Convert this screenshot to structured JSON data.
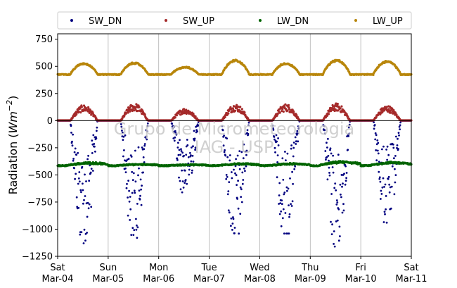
{
  "chart_data": {
    "type": "scatter",
    "ylabel_main": "Radiation (",
    "ylabel_unit": "Wm",
    "ylabel_exp": "−2",
    "ylabel_close": ")",
    "ylim": [
      -1250,
      800
    ],
    "y_ticks": [
      750,
      500,
      250,
      0,
      -250,
      -500,
      -750,
      -1000,
      -1250
    ],
    "y_tick_labels": [
      "750",
      "500",
      "250",
      "0",
      "−250",
      "−500",
      "−750",
      "−1000",
      "−1250"
    ],
    "x_range_days": [
      0,
      7
    ],
    "x_ticks": [
      {
        "day": "Sat",
        "date": "Mar-04"
      },
      {
        "day": "Sun",
        "date": "Mar-05"
      },
      {
        "day": "Mon",
        "date": "Mar-06"
      },
      {
        "day": "Tue",
        "date": "Mar-07"
      },
      {
        "day": "Wed",
        "date": "Mar-08"
      },
      {
        "day": "Thu",
        "date": "Mar-09"
      },
      {
        "day": "Fri",
        "date": "Mar-10"
      },
      {
        "day": "Sat",
        "date": "Mar-11"
      }
    ],
    "grid_x": true,
    "zero_line": true,
    "legend_position": "top",
    "series": [
      {
        "name": "SW_DN",
        "color": "#000080",
        "baseline": 0,
        "daily_peaks": [
          -1130,
          -1080,
          -660,
          -1100,
          -1040,
          -1160,
          -940
        ]
      },
      {
        "name": "SW_UP",
        "color": "#a52a2a",
        "baseline": 0,
        "daily_peaks": [
          145,
          160,
          115,
          155,
          155,
          160,
          140
        ]
      },
      {
        "name": "LW_DN",
        "color": "#006400",
        "baseline": -415,
        "daily_peaks": [
          -385,
          -400,
          -405,
          -395,
          -395,
          -375,
          -380
        ]
      },
      {
        "name": "LW_UP",
        "color": "#b8860b",
        "baseline": 425,
        "daily_peaks": [
          530,
          535,
          495,
          560,
          530,
          560,
          550
        ]
      }
    ],
    "watermark_lines": [
      "Grupo de Micrometeorologia",
      "IAG - USP"
    ]
  }
}
